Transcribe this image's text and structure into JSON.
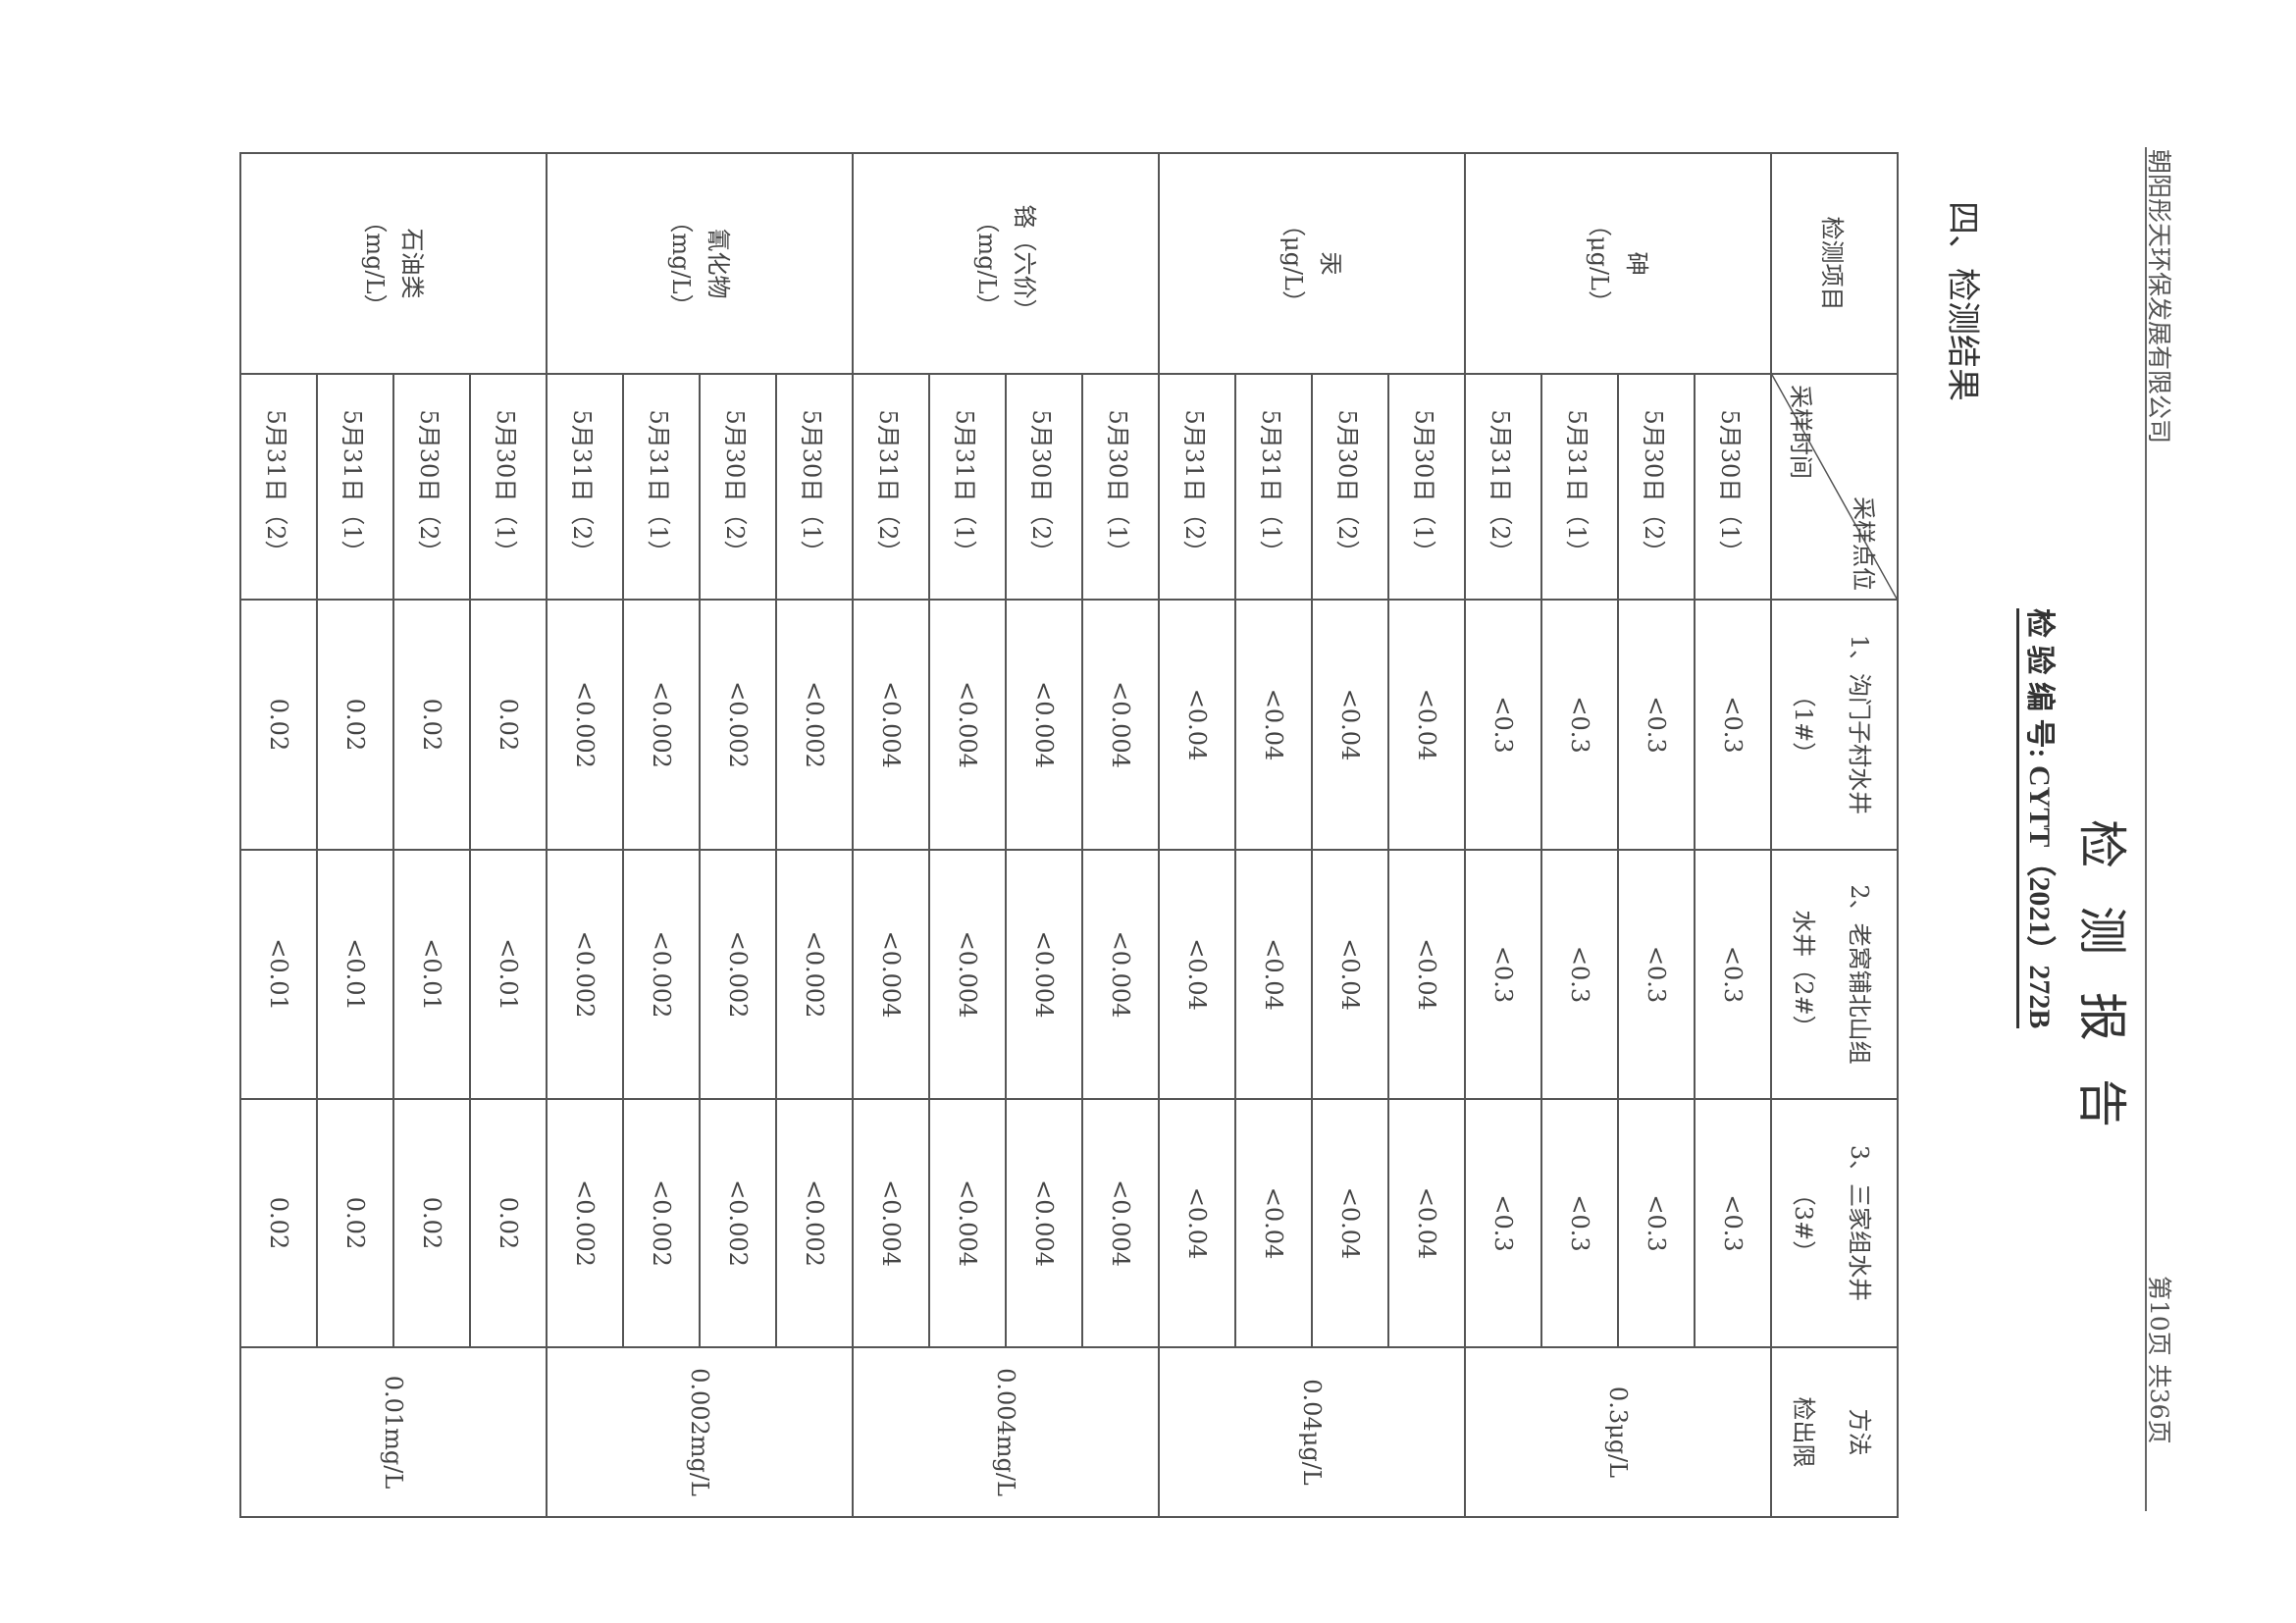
{
  "header": {
    "company": "朝阳彤天环保发展有限公司",
    "page_number": "第10页  共36页",
    "title": "检测报告",
    "report_number": "检 验 编 号: CYTT（2021）272B"
  },
  "section_title": "四、检测结果",
  "table": {
    "item_header": "检测项目",
    "diag_top": "采样点位",
    "diag_bottom": "采样时间",
    "sites": [
      {
        "line1": "1、沟门子村水井",
        "line2": "（1#）"
      },
      {
        "line1": "2、老窝铺北山组",
        "line2": "水井（2#）"
      },
      {
        "line1": "3、三家组水井",
        "line2": "（3#）"
      }
    ],
    "method_header_1": "方法",
    "method_header_2": "检出限",
    "groups": [
      {
        "name": "砷",
        "unit": "（μg/L）",
        "limit": "0.3μg/L",
        "rows": [
          {
            "time": "5月30日（1）",
            "values": [
              "<0.3",
              "<0.3",
              "<0.3"
            ]
          },
          {
            "time": "5月30日（2）",
            "values": [
              "<0.3",
              "<0.3",
              "<0.3"
            ]
          },
          {
            "time": "5月31日（1）",
            "values": [
              "<0.3",
              "<0.3",
              "<0.3"
            ]
          },
          {
            "time": "5月31日（2）",
            "values": [
              "<0.3",
              "<0.3",
              "<0.3"
            ]
          }
        ]
      },
      {
        "name": "汞",
        "unit": "（μg/L）",
        "limit": "0.04μg/L",
        "rows": [
          {
            "time": "5月30日（1）",
            "values": [
              "<0.04",
              "<0.04",
              "<0.04"
            ]
          },
          {
            "time": "5月30日（2）",
            "values": [
              "<0.04",
              "<0.04",
              "<0.04"
            ]
          },
          {
            "time": "5月31日（1）",
            "values": [
              "<0.04",
              "<0.04",
              "<0.04"
            ]
          },
          {
            "time": "5月31日（2）",
            "values": [
              "<0.04",
              "<0.04",
              "<0.04"
            ]
          }
        ]
      },
      {
        "name": "铬（六价）",
        "unit": "（mg/L）",
        "limit": "0.004mg/L",
        "rows": [
          {
            "time": "5月30日（1）",
            "values": [
              "<0.004",
              "<0.004",
              "<0.004"
            ]
          },
          {
            "time": "5月30日（2）",
            "values": [
              "<0.004",
              "<0.004",
              "<0.004"
            ]
          },
          {
            "time": "5月31日（1）",
            "values": [
              "<0.004",
              "<0.004",
              "<0.004"
            ]
          },
          {
            "time": "5月31日（2）",
            "values": [
              "<0.004",
              "<0.004",
              "<0.004"
            ]
          }
        ]
      },
      {
        "name": "氰化物",
        "unit": "（mg/L）",
        "limit": "0.002mg/L",
        "rows": [
          {
            "time": "5月30日（1）",
            "values": [
              "<0.002",
              "<0.002",
              "<0.002"
            ]
          },
          {
            "time": "5月30日（2）",
            "values": [
              "<0.002",
              "<0.002",
              "<0.002"
            ]
          },
          {
            "time": "5月31日（1）",
            "values": [
              "<0.002",
              "<0.002",
              "<0.002"
            ]
          },
          {
            "time": "5月31日（2）",
            "values": [
              "<0.002",
              "<0.002",
              "<0.002"
            ]
          }
        ]
      },
      {
        "name": "石油类",
        "unit": "（mg/L）",
        "limit": "0.01mg/L",
        "rows": [
          {
            "time": "5月30日（1）",
            "values": [
              "0.02",
              "<0.01",
              "0.02"
            ]
          },
          {
            "time": "5月30日（2）",
            "values": [
              "0.02",
              "<0.01",
              "0.02"
            ]
          },
          {
            "time": "5月31日（1）",
            "values": [
              "0.02",
              "<0.01",
              "0.02"
            ]
          },
          {
            "time": "5月31日（2）",
            "values": [
              "0.02",
              "<0.01",
              "0.02"
            ]
          }
        ]
      }
    ]
  }
}
